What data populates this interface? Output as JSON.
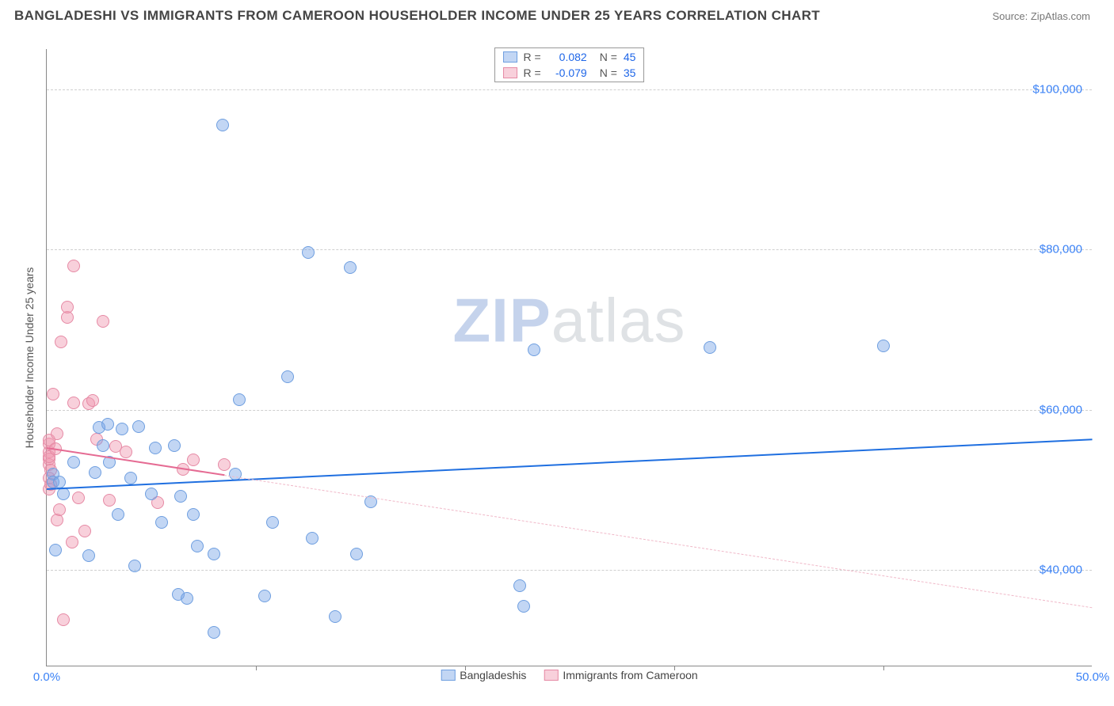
{
  "header": {
    "title": "BANGLADESHI VS IMMIGRANTS FROM CAMEROON HOUSEHOLDER INCOME UNDER 25 YEARS CORRELATION CHART",
    "source": "Source: ZipAtlas.com"
  },
  "watermark": {
    "bold": "ZIP",
    "rest": "atlas"
  },
  "chart": {
    "type": "scatter",
    "ylabel": "Householder Income Under 25 years",
    "xlim": [
      0,
      50
    ],
    "ylim": [
      28000,
      105000
    ],
    "yticks": [
      {
        "v": 40000,
        "label": "$40,000"
      },
      {
        "v": 60000,
        "label": "$60,000"
      },
      {
        "v": 80000,
        "label": "$80,000"
      },
      {
        "v": 100000,
        "label": "$100,000"
      }
    ],
    "xticks": [
      {
        "v": 0,
        "label": "0.0%"
      },
      {
        "v": 50,
        "label": "50.0%"
      }
    ],
    "xtick_marks": [
      10,
      20,
      30,
      40
    ],
    "grid_color": "#cfcfcf",
    "point_radius": 8,
    "series": [
      {
        "name": "Bangladeshis",
        "fill": "rgba(120,165,230,0.45)",
        "stroke": "#6f9fe0",
        "trend_color": "#1f6fe0",
        "trend_width": 2.5,
        "trend_dash": "none",
        "trend": {
          "x1": 0,
          "y1": 50200,
          "x2": 50,
          "y2": 56400
        },
        "R": "0.082",
        "N": "45",
        "points": [
          [
            0.3,
            52000
          ],
          [
            0.3,
            51000
          ],
          [
            0.4,
            42500
          ],
          [
            0.6,
            51000
          ],
          [
            0.8,
            49500
          ],
          [
            1.3,
            53500
          ],
          [
            2.0,
            41800
          ],
          [
            2.3,
            52200
          ],
          [
            2.5,
            57800
          ],
          [
            2.7,
            55500
          ],
          [
            2.9,
            58200
          ],
          [
            3.0,
            53500
          ],
          [
            3.4,
            47000
          ],
          [
            3.6,
            57600
          ],
          [
            4.0,
            51500
          ],
          [
            4.2,
            40500
          ],
          [
            4.4,
            57900
          ],
          [
            5.0,
            49500
          ],
          [
            5.2,
            55200
          ],
          [
            5.5,
            46000
          ],
          [
            6.1,
            55500
          ],
          [
            6.3,
            37000
          ],
          [
            6.4,
            49200
          ],
          [
            6.7,
            36500
          ],
          [
            7.0,
            47000
          ],
          [
            7.2,
            43000
          ],
          [
            8.0,
            32200
          ],
          [
            8.0,
            42000
          ],
          [
            8.4,
            95500
          ],
          [
            9.0,
            52000
          ],
          [
            9.2,
            61300
          ],
          [
            10.4,
            36800
          ],
          [
            10.8,
            46000
          ],
          [
            11.5,
            64100
          ],
          [
            12.5,
            79600
          ],
          [
            12.7,
            44000
          ],
          [
            13.8,
            34200
          ],
          [
            14.5,
            77800
          ],
          [
            14.8,
            42000
          ],
          [
            15.5,
            48500
          ],
          [
            22.6,
            38100
          ],
          [
            22.8,
            35500
          ],
          [
            23.3,
            67500
          ],
          [
            31.7,
            67800
          ],
          [
            40.0,
            68000
          ]
        ]
      },
      {
        "name": "Immigrants from Cameroon",
        "fill": "rgba(240,150,175,0.45)",
        "stroke": "#e68aa5",
        "trend_color": "#e56b93",
        "trend_width": 2,
        "trend_dash": "solid-then-dash",
        "trend": {
          "x1": 0,
          "y1": 55300,
          "x2": 50,
          "y2": 35400
        },
        "R": "-0.079",
        "N": "35",
        "points": [
          [
            0.1,
            53200
          ],
          [
            0.1,
            54800
          ],
          [
            0.1,
            53900
          ],
          [
            0.1,
            55700
          ],
          [
            0.1,
            54200
          ],
          [
            0.1,
            51500
          ],
          [
            0.1,
            50100
          ],
          [
            0.1,
            56200
          ],
          [
            0.2,
            52500
          ],
          [
            0.2,
            50700
          ],
          [
            0.3,
            62000
          ],
          [
            0.4,
            55100
          ],
          [
            0.5,
            57000
          ],
          [
            0.5,
            46300
          ],
          [
            0.6,
            47500
          ],
          [
            0.7,
            68500
          ],
          [
            0.8,
            33800
          ],
          [
            1.0,
            71500
          ],
          [
            1.0,
            72800
          ],
          [
            1.2,
            43500
          ],
          [
            1.3,
            60900
          ],
          [
            1.3,
            78000
          ],
          [
            1.5,
            49000
          ],
          [
            1.8,
            44900
          ],
          [
            2.0,
            60800
          ],
          [
            2.2,
            61200
          ],
          [
            2.4,
            56300
          ],
          [
            2.7,
            71000
          ],
          [
            3.0,
            48700
          ],
          [
            3.3,
            55400
          ],
          [
            3.8,
            54800
          ],
          [
            5.3,
            48400
          ],
          [
            6.5,
            52600
          ],
          [
            7.0,
            53800
          ],
          [
            8.5,
            53200
          ]
        ]
      }
    ],
    "legend_top_key_R": "R =",
    "legend_top_key_N": "N ="
  }
}
